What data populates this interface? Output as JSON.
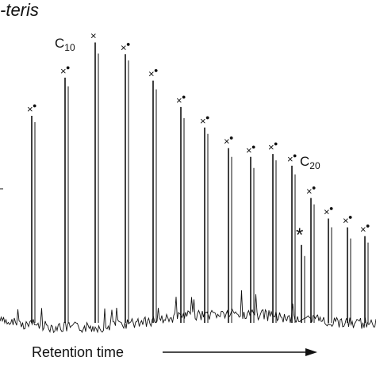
{
  "chart_data": {
    "type": "line",
    "title_fragment": "-teris",
    "xlabel": "Retention time",
    "annotations": {
      "c10_label": "C",
      "c10_sub": "10",
      "c20_label": "C",
      "c20_sub": "20",
      "star_label": "*"
    },
    "peak_markers": [
      "×",
      "●"
    ],
    "peaks": [
      {
        "rt": 40,
        "height": 0.7,
        "cross": true,
        "dot": true
      },
      {
        "rt": 82,
        "height": 0.83,
        "cross": true,
        "dot": true
      },
      {
        "rt": 120,
        "height": 0.95,
        "cross": true,
        "dot": false
      },
      {
        "rt": 158,
        "height": 0.91,
        "cross": true,
        "dot": true
      },
      {
        "rt": 193,
        "height": 0.82,
        "cross": true,
        "dot": true
      },
      {
        "rt": 228,
        "height": 0.73,
        "cross": true,
        "dot": true
      },
      {
        "rt": 258,
        "height": 0.66,
        "cross": true,
        "dot": true
      },
      {
        "rt": 288,
        "height": 0.59,
        "cross": true,
        "dot": true
      },
      {
        "rt": 316,
        "height": 0.56,
        "cross": true,
        "dot": true
      },
      {
        "rt": 344,
        "height": 0.57,
        "cross": true,
        "dot": true
      },
      {
        "rt": 368,
        "height": 0.53,
        "cross": true,
        "dot": true
      },
      {
        "rt": 380,
        "height": 0.26,
        "cross": false,
        "dot": false,
        "star": true
      },
      {
        "rt": 392,
        "height": 0.42,
        "cross": true,
        "dot": true
      },
      {
        "rt": 414,
        "height": 0.35,
        "cross": true,
        "dot": true
      },
      {
        "rt": 438,
        "height": 0.32,
        "cross": true,
        "dot": true
      },
      {
        "rt": 460,
        "height": 0.29,
        "cross": true,
        "dot": true
      }
    ],
    "xlim": [
      0,
      474
    ],
    "ylim": [
      0,
      1
    ],
    "grid": false,
    "line_color": "#111111"
  }
}
